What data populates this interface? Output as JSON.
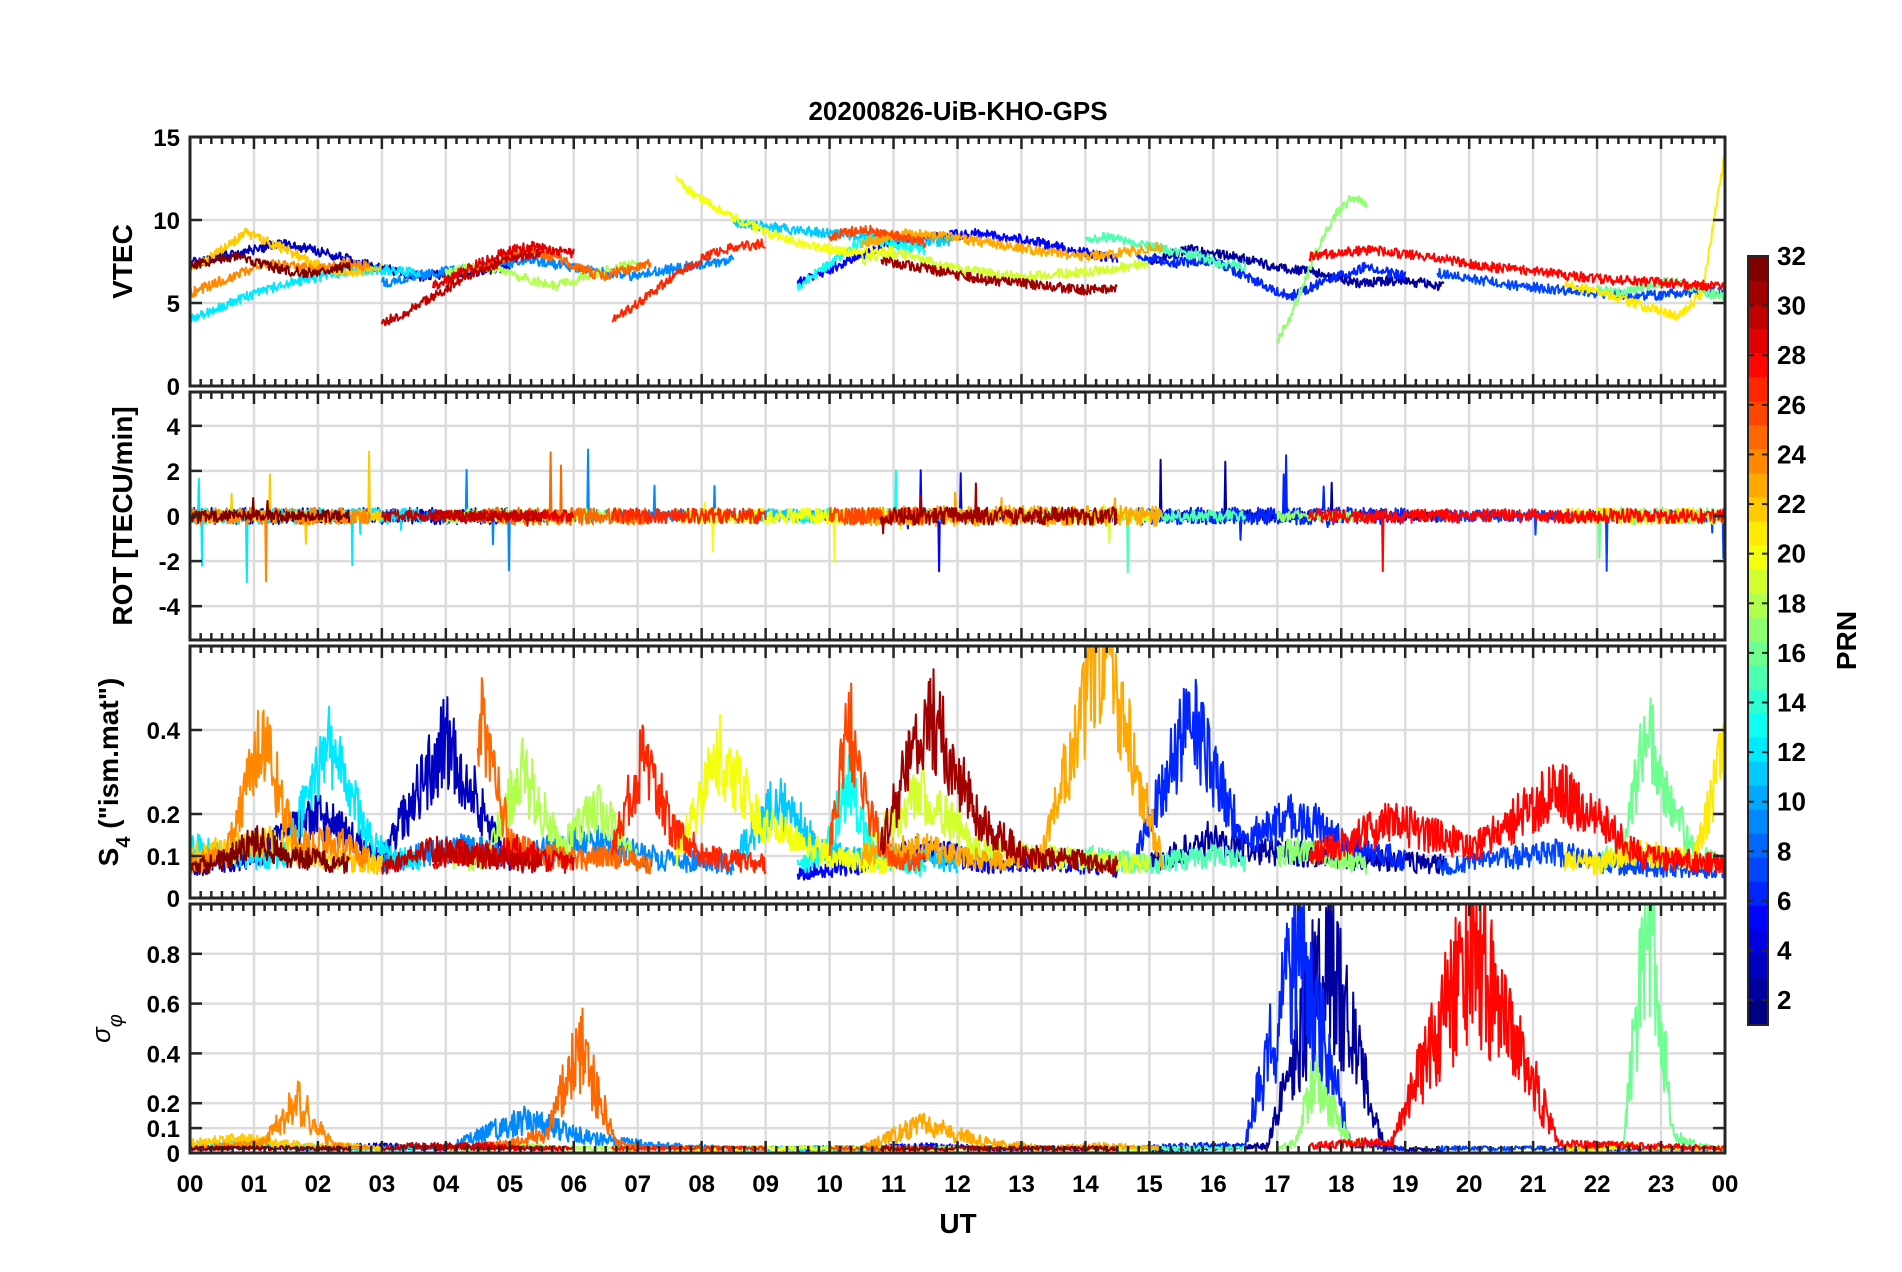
{
  "chart_data": {
    "type": "line",
    "title": "20200826-UiB-KHO-GPS",
    "xlabel": "UT",
    "x_tick_labels": [
      "00",
      "01",
      "02",
      "03",
      "04",
      "05",
      "06",
      "07",
      "08",
      "09",
      "10",
      "11",
      "12",
      "13",
      "14",
      "15",
      "16",
      "17",
      "18",
      "19",
      "20",
      "21",
      "22",
      "23",
      "00"
    ],
    "x_range_hours": [
      0,
      24
    ],
    "grid": true,
    "panels": [
      {
        "id": "vtec",
        "ylabel": "VTEC",
        "ylim": [
          0,
          15
        ],
        "yticks": [
          0,
          5,
          10,
          15
        ],
        "ytick_labels": [
          "0",
          "5",
          "10",
          "15"
        ]
      },
      {
        "id": "rot",
        "ylabel": "ROT [TECU/min]",
        "ylim": [
          -5.5,
          5.5
        ],
        "yticks": [
          -4,
          -2,
          0,
          2,
          4
        ],
        "ytick_labels": [
          "-4",
          "-2",
          "0",
          "2",
          "4"
        ]
      },
      {
        "id": "s4",
        "ylabel_main": "S",
        "ylabel_sub": "4",
        "ylabel_rest": " (\"ism.mat\")",
        "ylim": [
          0,
          0.6
        ],
        "yticks": [
          0,
          0.1,
          0.2,
          0.4
        ],
        "ytick_labels": [
          "0",
          "0.1",
          "0.2",
          "0.4"
        ]
      },
      {
        "id": "sigma",
        "ylabel_main": "σ",
        "ylabel_sub": "φ",
        "ylim": [
          0,
          1.0
        ],
        "yticks": [
          0,
          0.1,
          0.2,
          0.4,
          0.6,
          0.8
        ],
        "ytick_labels": [
          "0",
          "0.1",
          "0.2",
          "0.4",
          "0.6",
          "0.8"
        ]
      }
    ],
    "colorbar": {
      "label": "PRN",
      "range": [
        1,
        32
      ],
      "tick_values": [
        2,
        4,
        6,
        8,
        10,
        12,
        14,
        16,
        18,
        20,
        22,
        24,
        26,
        28,
        30,
        32
      ],
      "tick_labels": [
        "2",
        "4",
        "6",
        "8",
        "10",
        "12",
        "14",
        "16",
        "18",
        "20",
        "22",
        "24",
        "26",
        "28",
        "30",
        "32"
      ],
      "colormap": "jet"
    },
    "series": [
      {
        "prn": 2,
        "t_start": 15.0,
        "t_end": 19.6,
        "vtec": [
          7.6,
          8.2,
          7.8,
          7.2,
          6.8,
          6.2,
          6.4,
          6.0
        ],
        "s4": [
          0.08,
          0.14,
          0.11,
          0.1,
          0.09,
          0.08
        ],
        "sigma": [
          0.01,
          0.02,
          0.03,
          0.86,
          0.02,
          0.01
        ]
      },
      {
        "prn": 3,
        "t_start": 0.0,
        "t_end": 5.0,
        "vtec": [
          7.4,
          8.0,
          8.6,
          8.0,
          7.2,
          6.6,
          6.8,
          7.2
        ],
        "s4": [
          0.07,
          0.1,
          0.2,
          0.09,
          0.38,
          0.08
        ],
        "sigma": [
          0.02,
          0.03,
          0.02,
          0.03,
          0.02,
          0.02
        ]
      },
      {
        "prn": 5,
        "t_start": 9.5,
        "t_end": 14.5,
        "vtec": [
          6.2,
          7.4,
          8.6,
          9.0,
          9.2,
          8.8,
          8.2,
          7.6
        ],
        "s4": [
          0.06,
          0.08,
          0.12,
          0.08,
          0.09,
          0.07
        ],
        "sigma": [
          0.02,
          0.02,
          0.03,
          0.02,
          0.02,
          0.02
        ]
      },
      {
        "prn": 6,
        "t_start": 14.8,
        "t_end": 19.0,
        "vtec": [
          7.8,
          7.4,
          7.6,
          6.4,
          5.4,
          6.4,
          7.2,
          6.6
        ],
        "s4": [
          0.1,
          0.43,
          0.14,
          0.2,
          0.12,
          0.09
        ],
        "sigma": [
          0.02,
          0.03,
          0.03,
          0.87,
          0.04,
          0.02
        ]
      },
      {
        "prn": 7,
        "t_start": 19.5,
        "t_end": 24.0,
        "vtec": [
          6.8,
          6.4,
          6.0,
          5.8,
          5.6,
          5.4,
          5.6,
          5.8
        ],
        "s4": [
          0.07,
          0.09,
          0.11,
          0.08,
          0.07,
          0.06
        ],
        "sigma": [
          0.02,
          0.02,
          0.02,
          0.02,
          0.02,
          0.02
        ]
      },
      {
        "prn": 9,
        "t_start": 3.0,
        "t_end": 8.5,
        "vtec": [
          6.2,
          6.8,
          7.2,
          7.6,
          7.0,
          6.6,
          7.2,
          7.6
        ],
        "s4": [
          0.08,
          0.12,
          0.1,
          0.14,
          0.09,
          0.08
        ],
        "sigma": [
          0.02,
          0.03,
          0.14,
          0.06,
          0.03,
          0.02
        ]
      },
      {
        "prn": 11,
        "t_start": 8.5,
        "t_end": 12.0,
        "vtec": [
          9.8,
          9.6,
          9.4,
          9.2,
          9.0,
          8.8,
          8.6,
          8.8
        ],
        "s4": [
          0.09,
          0.24,
          0.11,
          0.09,
          0.1,
          0.08
        ],
        "sigma": [
          0.02,
          0.02,
          0.02,
          0.02,
          0.02,
          0.02
        ]
      },
      {
        "prn": 12,
        "t_start": 0.0,
        "t_end": 3.6,
        "vtec": [
          4.0,
          4.8,
          5.6,
          6.2,
          6.6,
          7.0,
          7.0,
          6.8
        ],
        "s4": [
          0.12,
          0.1,
          0.09,
          0.36,
          0.12,
          0.08
        ],
        "sigma": [
          0.03,
          0.04,
          0.03,
          0.02,
          0.02,
          0.02
        ]
      },
      {
        "prn": 13,
        "t_start": 9.5,
        "t_end": 11.5,
        "vtec": [
          6.0,
          6.8,
          7.6,
          8.4,
          8.8,
          8.6,
          8.4,
          8.2
        ],
        "s4": [
          0.08,
          0.1,
          0.28,
          0.1,
          0.09,
          0.07
        ],
        "sigma": [
          0.02,
          0.02,
          0.02,
          0.02,
          0.02,
          0.02
        ]
      },
      {
        "prn": 15,
        "t_start": 14.0,
        "t_end": 16.5,
        "vtec": [
          8.8,
          9.0,
          8.6,
          8.4,
          8.0,
          7.8,
          7.4,
          7.2
        ],
        "s4": [
          0.1,
          0.09,
          0.08,
          0.09,
          0.1,
          0.09
        ],
        "sigma": [
          0.02,
          0.02,
          0.02,
          0.02,
          0.02,
          0.02
        ]
      },
      {
        "prn": 16,
        "t_start": 22.0,
        "t_end": 24.0,
        "vtec": [
          5.8,
          5.6,
          5.8,
          6.0,
          6.4,
          6.0,
          5.6,
          5.4
        ],
        "s4": [
          0.08,
          0.12,
          0.42,
          0.2,
          0.1,
          0.08
        ],
        "sigma": [
          0.02,
          0.03,
          1.0,
          0.08,
          0.03,
          0.02
        ]
      },
      {
        "prn": 17,
        "t_start": 17.0,
        "t_end": 18.4,
        "vtec": [
          2.6,
          4.2,
          6.0,
          8.0,
          9.6,
          10.8,
          11.4,
          10.8
        ],
        "s4": [
          0.1,
          0.12,
          0.11,
          0.1,
          0.09,
          0.08
        ],
        "sigma": [
          0.02,
          0.04,
          0.3,
          0.2,
          0.06,
          0.03
        ]
      },
      {
        "prn": 18,
        "t_start": 4.0,
        "t_end": 7.0,
        "vtec": [
          6.8,
          7.2,
          7.0,
          6.4,
          6.0,
          6.6,
          7.0,
          7.4
        ],
        "s4": [
          0.1,
          0.08,
          0.3,
          0.12,
          0.22,
          0.09
        ],
        "sigma": [
          0.02,
          0.02,
          0.03,
          0.02,
          0.02,
          0.02
        ]
      },
      {
        "prn": 19,
        "t_start": 10.5,
        "t_end": 15.0,
        "vtec": [
          7.6,
          8.0,
          7.2,
          6.8,
          6.6,
          6.8,
          7.0,
          7.4
        ],
        "s4": [
          0.09,
          0.26,
          0.12,
          0.1,
          0.09,
          0.08
        ],
        "sigma": [
          0.02,
          0.02,
          0.02,
          0.02,
          0.02,
          0.02
        ]
      },
      {
        "prn": 20,
        "t_start": 7.6,
        "t_end": 11.0,
        "vtec": [
          12.4,
          11.0,
          10.0,
          9.2,
          8.6,
          8.2,
          8.0,
          8.2
        ],
        "s4": [
          0.1,
          0.34,
          0.18,
          0.12,
          0.09,
          0.08
        ],
        "sigma": [
          0.02,
          0.02,
          0.02,
          0.02,
          0.02,
          0.02
        ]
      },
      {
        "prn": 21,
        "t_start": 21.5,
        "t_end": 24.0,
        "vtec": [
          6.2,
          5.8,
          5.4,
          5.0,
          4.6,
          4.2,
          5.6,
          14.0
        ],
        "s4": [
          0.09,
          0.08,
          0.11,
          0.1,
          0.09,
          0.35
        ],
        "sigma": [
          0.02,
          0.02,
          0.03,
          0.02,
          0.02,
          0.02
        ]
      },
      {
        "prn": 22,
        "t_start": 0.0,
        "t_end": 3.0,
        "vtec": [
          7.0,
          8.0,
          9.2,
          8.6,
          7.8,
          7.0,
          6.8,
          7.2
        ],
        "s4": [
          0.1,
          0.12,
          0.14,
          0.1,
          0.09,
          0.08
        ],
        "sigma": [
          0.04,
          0.06,
          0.05,
          0.03,
          0.03,
          0.02
        ]
      },
      {
        "prn": 23,
        "t_start": 10.5,
        "t_end": 15.2,
        "vtec": [
          8.6,
          9.2,
          9.0,
          8.6,
          8.2,
          7.8,
          8.0,
          8.4
        ],
        "s4": [
          0.1,
          0.12,
          0.09,
          0.1,
          0.6,
          0.09
        ],
        "sigma": [
          0.02,
          0.12,
          0.05,
          0.02,
          0.03,
          0.02
        ]
      },
      {
        "prn": 24,
        "t_start": 0.0,
        "t_end": 2.8,
        "vtec": [
          5.6,
          6.2,
          6.8,
          7.4,
          7.2,
          7.0,
          7.4,
          7.2
        ],
        "s4": [
          0.08,
          0.1,
          0.38,
          0.12,
          0.14,
          0.09
        ],
        "sigma": [
          0.02,
          0.03,
          0.04,
          0.22,
          0.03,
          0.02
        ]
      },
      {
        "prn": 25,
        "t_start": 4.5,
        "t_end": 7.2,
        "vtec": [
          7.0,
          7.6,
          8.2,
          7.8,
          7.2,
          6.6,
          7.0,
          7.4
        ],
        "s4": [
          0.44,
          0.12,
          0.1,
          0.09,
          0.1,
          0.08
        ],
        "sigma": [
          0.03,
          0.04,
          0.08,
          0.46,
          0.04,
          0.02
        ]
      },
      {
        "prn": 26,
        "t_start": 10.0,
        "t_end": 11.5,
        "vtec": [
          9.0,
          9.2,
          9.4,
          9.4,
          9.2,
          9.0,
          8.8,
          8.6
        ],
        "s4": [
          0.12,
          0.43,
          0.2,
          0.1,
          0.09,
          0.08
        ],
        "sigma": [
          0.02,
          0.02,
          0.02,
          0.02,
          0.02,
          0.02
        ]
      },
      {
        "prn": 27,
        "t_start": 6.6,
        "t_end": 9.0,
        "vtec": [
          4.0,
          4.8,
          5.8,
          6.8,
          7.6,
          8.2,
          8.4,
          8.6
        ],
        "s4": [
          0.12,
          0.34,
          0.16,
          0.1,
          0.09,
          0.08
        ],
        "sigma": [
          0.02,
          0.02,
          0.02,
          0.02,
          0.02,
          0.02
        ]
      },
      {
        "prn": 28,
        "t_start": 17.5,
        "t_end": 24.0,
        "vtec": [
          7.8,
          8.2,
          7.8,
          7.2,
          6.8,
          6.4,
          6.2,
          6.0
        ],
        "s4": [
          0.1,
          0.18,
          0.12,
          0.26,
          0.1,
          0.08
        ],
        "sigma": [
          0.03,
          0.05,
          0.88,
          0.04,
          0.03,
          0.02
        ]
      },
      {
        "prn": 29,
        "t_start": 3.8,
        "t_end": 6.0,
        "vtec": [
          6.0,
          6.6,
          7.2,
          7.8,
          8.2,
          8.4,
          8.2,
          8.0
        ],
        "s4": [
          0.09,
          0.11,
          0.1,
          0.12,
          0.09,
          0.08
        ],
        "sigma": [
          0.02,
          0.03,
          0.03,
          0.02,
          0.02,
          0.02
        ]
      },
      {
        "prn": 30,
        "t_start": 3.0,
        "t_end": 5.5,
        "vtec": [
          3.8,
          4.4,
          5.2,
          6.0,
          6.8,
          7.4,
          7.8,
          8.0
        ],
        "s4": [
          0.08,
          0.1,
          0.12,
          0.1,
          0.09,
          0.08
        ],
        "sigma": [
          0.02,
          0.03,
          0.03,
          0.02,
          0.02,
          0.02
        ]
      },
      {
        "prn": 31,
        "t_start": 10.8,
        "t_end": 14.5,
        "vtec": [
          7.6,
          7.2,
          6.8,
          6.4,
          6.2,
          6.0,
          5.8,
          5.8
        ],
        "s4": [
          0.12,
          0.45,
          0.2,
          0.1,
          0.09,
          0.08
        ],
        "sigma": [
          0.02,
          0.02,
          0.02,
          0.02,
          0.02,
          0.02
        ]
      },
      {
        "prn": 32,
        "t_start": 0.0,
        "t_end": 2.5,
        "vtec": [
          7.2,
          7.6,
          7.8,
          7.4,
          7.0,
          6.8,
          7.0,
          7.2
        ],
        "s4": [
          0.07,
          0.09,
          0.14,
          0.1,
          0.09,
          0.08
        ],
        "sigma": [
          0.02,
          0.02,
          0.02,
          0.02,
          0.02,
          0.02
        ]
      }
    ]
  }
}
